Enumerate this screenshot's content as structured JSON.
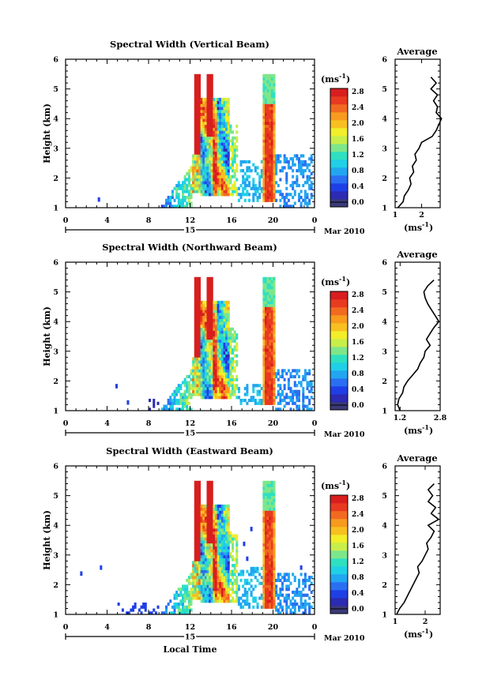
{
  "chart_data": [
    {
      "type": "heatmap",
      "title": "Spectral Width (Vertical Beam)",
      "ylabel": "Height (km)",
      "xlabel": "",
      "x_ticks": [
        "0",
        "4",
        "8",
        "12",
        "16",
        "20",
        "0"
      ],
      "xlim": [
        0,
        24
      ],
      "y_ticks": [
        "1",
        "2",
        "3",
        "4",
        "5",
        "6"
      ],
      "ylim": [
        1,
        6
      ],
      "date_label": "15",
      "month_label": "Mar 2010",
      "colorbar": {
        "unit_label": "(ms",
        "unit_exp": "-1",
        "unit_close": ")",
        "ticks": [
          "0.0",
          "0.4",
          "0.8",
          "1.2",
          "1.6",
          "2.0",
          "2.4",
          "2.8"
        ],
        "range": [
          0,
          3.0
        ],
        "colors": [
          "#3a3a78",
          "#2b2bb3",
          "#1f3fe6",
          "#2a6ff2",
          "#22a6f0",
          "#1fd0e6",
          "#2fe0c0",
          "#7ee68a",
          "#c8ee4a",
          "#f2ee2a",
          "#f7c020",
          "#f79a1e",
          "#f26a20",
          "#e83a20",
          "#d81e1e"
        ]
      },
      "average_profile": {
        "title": "Average",
        "xlabel": "(ms",
        "xlabel_exp": "-1",
        "xlabel_close": ")",
        "x_ticks": [
          "1",
          "2"
        ],
        "x_tick_values": [
          1,
          2
        ],
        "xlim": [
          1,
          2.7
        ],
        "y_ticks": [
          "1",
          "2",
          "3",
          "4",
          "5",
          "6"
        ],
        "ylim": [
          1,
          6
        ],
        "heights": [
          1.0,
          1.2,
          1.4,
          1.6,
          1.8,
          2.0,
          2.2,
          2.4,
          2.6,
          2.8,
          3.0,
          3.2,
          3.4,
          3.6,
          3.8,
          4.0,
          4.2,
          4.4,
          4.6,
          4.8,
          5.0,
          5.2,
          5.4
        ],
        "values": [
          1.1,
          1.3,
          1.35,
          1.5,
          1.6,
          1.55,
          1.7,
          1.65,
          1.8,
          1.75,
          1.9,
          2.0,
          2.4,
          2.55,
          2.65,
          2.75,
          2.55,
          2.6,
          2.45,
          2.6,
          2.35,
          2.55,
          2.35
        ]
      }
    },
    {
      "type": "heatmap",
      "title": "Spectral Width (Northward Beam)",
      "ylabel": "Height (km)",
      "xlabel": "",
      "x_ticks": [
        "0",
        "4",
        "8",
        "12",
        "16",
        "20",
        "0"
      ],
      "xlim": [
        0,
        24
      ],
      "y_ticks": [
        "1",
        "2",
        "3",
        "4",
        "5",
        "6"
      ],
      "ylim": [
        1,
        6
      ],
      "date_label": "15",
      "month_label": "Mar 2010",
      "colorbar": {
        "unit_label": "(ms",
        "unit_exp": "-1",
        "unit_close": ")",
        "ticks": [
          "0.0",
          "0.4",
          "0.8",
          "1.2",
          "1.6",
          "2.0",
          "2.4",
          "2.8"
        ],
        "range": [
          0,
          3.0
        ],
        "colors": [
          "#3a3a78",
          "#2b2bb3",
          "#1f3fe6",
          "#2a6ff2",
          "#22a6f0",
          "#1fd0e6",
          "#2fe0c0",
          "#7ee68a",
          "#c8ee4a",
          "#f2ee2a",
          "#f7c020",
          "#f79a1e",
          "#f26a20",
          "#e83a20",
          "#d81e1e"
        ]
      },
      "average_profile": {
        "title": "Average",
        "xlabel": "(ms",
        "xlabel_exp": "-1",
        "xlabel_close": ")",
        "x_ticks": [
          "1.2",
          "2.8"
        ],
        "x_tick_values": [
          1.2,
          2.8
        ],
        "xlim": [
          1.0,
          2.8
        ],
        "y_ticks": [
          "1",
          "2",
          "3",
          "4",
          "5",
          "6"
        ],
        "ylim": [
          1,
          6
        ],
        "heights": [
          1.0,
          1.2,
          1.4,
          1.6,
          1.8,
          2.0,
          2.2,
          2.4,
          2.6,
          2.8,
          3.0,
          3.2,
          3.4,
          3.6,
          3.8,
          4.0,
          4.2,
          4.4,
          4.6,
          4.8,
          5.0,
          5.2,
          5.4
        ],
        "values": [
          1.2,
          1.1,
          1.15,
          1.3,
          1.35,
          1.5,
          1.7,
          1.9,
          2.0,
          2.15,
          2.2,
          2.4,
          2.25,
          2.4,
          2.55,
          2.75,
          2.6,
          2.45,
          2.3,
          2.2,
          2.15,
          2.3,
          2.55
        ]
      }
    },
    {
      "type": "heatmap",
      "title": "Spectral Width (Eastward Beam)",
      "ylabel": "Height (km)",
      "xlabel": "Local Time",
      "x_ticks": [
        "0",
        "4",
        "8",
        "12",
        "16",
        "20",
        "0"
      ],
      "xlim": [
        0,
        24
      ],
      "y_ticks": [
        "1",
        "2",
        "3",
        "4",
        "5",
        "6"
      ],
      "ylim": [
        1,
        6
      ],
      "date_label": "15",
      "month_label": "Mar 2010",
      "colorbar": {
        "unit_label": "(ms",
        "unit_exp": "-1",
        "unit_close": ")",
        "ticks": [
          "0.0",
          "0.4",
          "0.8",
          "1.2",
          "1.6",
          "2.0",
          "2.4",
          "2.8"
        ],
        "range": [
          0,
          3.0
        ],
        "colors": [
          "#3a3a78",
          "#2b2bb3",
          "#1f3fe6",
          "#2a6ff2",
          "#22a6f0",
          "#1fd0e6",
          "#2fe0c0",
          "#7ee68a",
          "#c8ee4a",
          "#f2ee2a",
          "#f7c020",
          "#f79a1e",
          "#f26a20",
          "#e83a20",
          "#d81e1e"
        ]
      },
      "average_profile": {
        "title": "Average",
        "xlabel": "(ms",
        "xlabel_exp": "-1",
        "xlabel_close": ")",
        "x_ticks": [
          "1",
          "2"
        ],
        "x_tick_values": [
          1,
          2
        ],
        "xlim": [
          1,
          2.5
        ],
        "y_ticks": [
          "1",
          "2",
          "3",
          "4",
          "5",
          "6"
        ],
        "ylim": [
          1,
          6
        ],
        "heights": [
          1.0,
          1.2,
          1.4,
          1.6,
          1.8,
          2.0,
          2.2,
          2.4,
          2.6,
          2.8,
          3.0,
          3.2,
          3.4,
          3.6,
          3.8,
          4.0,
          4.2,
          4.4,
          4.6,
          4.8,
          5.0,
          5.2,
          5.4
        ],
        "values": [
          1.05,
          1.15,
          1.3,
          1.4,
          1.5,
          1.6,
          1.7,
          1.8,
          1.75,
          1.9,
          2.0,
          2.1,
          2.05,
          2.2,
          2.3,
          2.1,
          2.45,
          2.2,
          2.35,
          2.1,
          2.25,
          2.1,
          2.3
        ]
      }
    }
  ]
}
